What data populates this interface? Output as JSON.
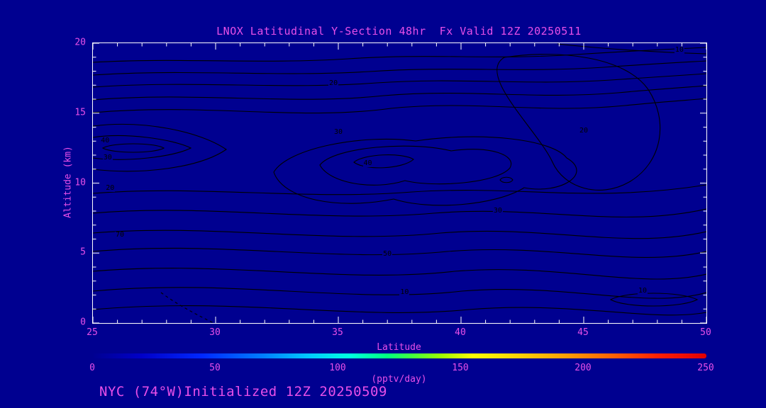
{
  "title": "LNOX Latitudinal Y-Section 48hr  Fx Valid 12Z 20250511",
  "footer": "NYC (74°W)Initialized 12Z 20250509",
  "axes": {
    "x": {
      "label": "Latitude",
      "min": 25,
      "max": 50,
      "ticks": [
        25,
        30,
        35,
        40,
        45,
        50
      ]
    },
    "y": {
      "label": "Altitude (km)",
      "min": 0,
      "max": 20,
      "ticks": [
        0,
        5,
        10,
        15,
        20
      ]
    }
  },
  "colorbar": {
    "label": "(pptv/day)",
    "min": 0,
    "max": 250,
    "ticks": [
      0,
      50,
      100,
      150,
      200,
      250
    ],
    "stops": [
      [
        "#000090",
        0
      ],
      [
        "#0000c8",
        8
      ],
      [
        "#0028ff",
        18
      ],
      [
        "#0080ff",
        28
      ],
      [
        "#00c8ff",
        35
      ],
      [
        "#00ffe0",
        42
      ],
      [
        "#00ff80",
        48
      ],
      [
        "#40ff40",
        52
      ],
      [
        "#a0ff00",
        57
      ],
      [
        "#ffff00",
        62
      ],
      [
        "#ffd000",
        70
      ],
      [
        "#ffa000",
        77
      ],
      [
        "#ff6000",
        85
      ],
      [
        "#ff2000",
        92
      ],
      [
        "#e00000",
        100
      ]
    ]
  },
  "colors": {
    "background": "#000090",
    "text": "#e84fe8",
    "axis": "#ffffff",
    "contour": "#000000"
  },
  "chart_data": {
    "type": "contour",
    "title": "LNOX Latitudinal Y-Section 48hr  Fx Valid 12Z 20250511",
    "xlabel": "Latitude",
    "ylabel": "Altitude (km)",
    "xlim": [
      25,
      50
    ],
    "ylim": [
      0,
      20
    ],
    "units": "pptv/day",
    "levels": [
      10,
      20,
      30,
      40,
      50,
      60,
      70
    ],
    "colorbar_range": [
      0,
      250
    ],
    "contour_labels": [
      {
        "value": 10,
        "lat": 48.9,
        "alt": 19.5
      },
      {
        "value": 20,
        "lat": 34.8,
        "alt": 17.1
      },
      {
        "value": 40,
        "lat": 25.5,
        "alt": 13.0
      },
      {
        "value": 30,
        "lat": 25.6,
        "alt": 11.8
      },
      {
        "value": 20,
        "lat": 25.7,
        "alt": 9.6
      },
      {
        "value": 30,
        "lat": 35.0,
        "alt": 13.6
      },
      {
        "value": 40,
        "lat": 36.2,
        "alt": 11.4
      },
      {
        "value": 20,
        "lat": 45.0,
        "alt": 13.7
      },
      {
        "value": 30,
        "lat": 41.5,
        "alt": 8.0
      },
      {
        "value": 70,
        "lat": 26.1,
        "alt": 6.3
      },
      {
        "value": 50,
        "lat": 37.0,
        "alt": 4.9
      },
      {
        "value": 10,
        "lat": 37.7,
        "alt": 2.2
      },
      {
        "value": 10,
        "lat": 47.4,
        "alt": 2.3
      }
    ],
    "features": "Closed contour maxima near lat 36 / 11.5 km (~40-50) and lat 25.5 / 12.5 km (~40); mid-level band ~70 at lat 26 / 6 km; values fall toward surface (~10) and toward 20 km (~10)"
  }
}
